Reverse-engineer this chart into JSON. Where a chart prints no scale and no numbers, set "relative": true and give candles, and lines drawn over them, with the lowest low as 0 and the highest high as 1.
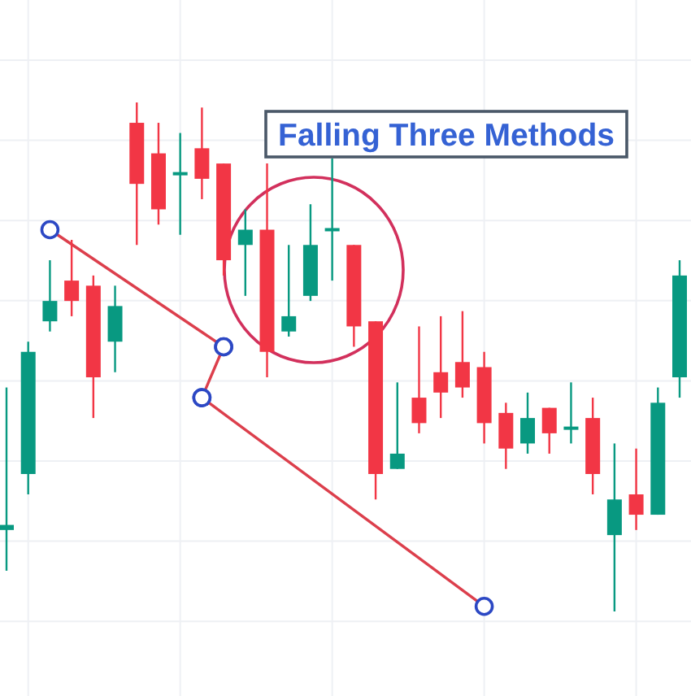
{
  "chart_data": {
    "type": "candlestick",
    "relative": true,
    "grid": true,
    "categories": [
      null,
      null,
      null,
      null,
      null,
      null,
      null,
      null,
      null,
      null,
      null,
      null,
      null,
      null,
      null,
      null,
      null,
      null,
      null,
      null,
      null,
      null,
      null,
      null,
      null,
      null,
      null,
      null,
      null,
      null,
      null,
      null
    ],
    "ohlc": [
      [
        0.16,
        0.44,
        0.08,
        0.17
      ],
      [
        0.27,
        0.53,
        0.23,
        0.51
      ],
      [
        0.57,
        0.69,
        0.55,
        0.61
      ],
      [
        0.65,
        0.73,
        0.58,
        0.61
      ],
      [
        0.64,
        0.66,
        0.38,
        0.46
      ],
      [
        0.53,
        0.64,
        0.47,
        0.6
      ],
      [
        0.96,
        1,
        0.72,
        0.84
      ],
      [
        0.9,
        0.96,
        0.76,
        0.79
      ],
      [
        0.86,
        0.94,
        0.74,
        0.86
      ],
      [
        0.91,
        0.99,
        0.81,
        0.85
      ],
      [
        0.88,
        0.88,
        0.66,
        0.69
      ],
      [
        0.72,
        0.79,
        0.62,
        0.75
      ],
      [
        0.75,
        0.88,
        0.46,
        0.51
      ],
      [
        0.55,
        0.72,
        0.54,
        0.58
      ],
      [
        0.62,
        0.8,
        0.61,
        0.72
      ],
      [
        0.75,
        0.89,
        0.65,
        0.75
      ],
      [
        0.72,
        0.72,
        0.52,
        0.56
      ],
      [
        0.57,
        0.57,
        0.22,
        0.27
      ],
      [
        0.28,
        0.45,
        0.28,
        0.31
      ],
      [
        0.42,
        0.56,
        0.35,
        0.37
      ],
      [
        0.47,
        0.58,
        0.38,
        0.43
      ],
      [
        0.49,
        0.59,
        0.42,
        0.44
      ],
      [
        0.48,
        0.51,
        0.33,
        0.37
      ],
      [
        0.39,
        0.41,
        0.28,
        0.32
      ],
      [
        0.33,
        0.43,
        0.31,
        0.38
      ],
      [
        0.4,
        0.4,
        0.31,
        0.35
      ],
      [
        0.36,
        0.45,
        0.33,
        0.36
      ],
      [
        0.38,
        0.42,
        0.23,
        0.27
      ],
      [
        0.15,
        0.33,
        0,
        0.22
      ],
      [
        0.23,
        0.32,
        0.16,
        0.19
      ],
      [
        0.19,
        0.44,
        0.19,
        0.41
      ],
      [
        0.46,
        0.69,
        0.42,
        0.66
      ]
    ],
    "colors": [
      "#089981",
      "#089981",
      "#089981",
      "#f23645",
      "#f23645",
      "#089981",
      "#f23645",
      "#f23645",
      "#089981",
      "#f23645",
      "#f23645",
      "#089981",
      "#f23645",
      "#089981",
      "#089981",
      "#089981",
      "#f23645",
      "#f23645",
      "#089981",
      "#f23645",
      "#f23645",
      "#f23645",
      "#f23645",
      "#f23645",
      "#089981",
      "#f23645",
      "#089981",
      "#f23645",
      "#089981",
      "#f23645",
      "#089981",
      "#089981"
    ],
    "series": [
      {
        "type": "line",
        "color": "#dc3f4c",
        "marker": "circle",
        "values": [
          null,
          null,
          0.75,
          null,
          null,
          null,
          null,
          null,
          null,
          null,
          0.52,
          null,
          null,
          null,
          null,
          null,
          null,
          null,
          null,
          null,
          null,
          null,
          null,
          null,
          null,
          null,
          null,
          null,
          null,
          null,
          null,
          null
        ]
      },
      {
        "type": "line",
        "color": "#dc3f4c",
        "marker": "circle",
        "values": [
          null,
          null,
          null,
          null,
          null,
          null,
          null,
          null,
          null,
          0.42,
          0.52,
          null,
          null,
          null,
          null,
          null,
          null,
          null,
          null,
          null,
          null,
          null,
          null,
          null,
          null,
          null,
          null,
          null,
          null,
          null,
          null,
          null
        ]
      },
      {
        "type": "line",
        "color": "#dc3f4c",
        "marker": "circle",
        "values": [
          null,
          null,
          null,
          null,
          null,
          null,
          null,
          null,
          null,
          0.42,
          null,
          null,
          null,
          null,
          null,
          null,
          null,
          null,
          null,
          null,
          null,
          null,
          0.01,
          null,
          null,
          null,
          null,
          null,
          null,
          null,
          null,
          null
        ]
      }
    ],
    "annotations": [
      "Falling Three Methods"
    ]
  }
}
